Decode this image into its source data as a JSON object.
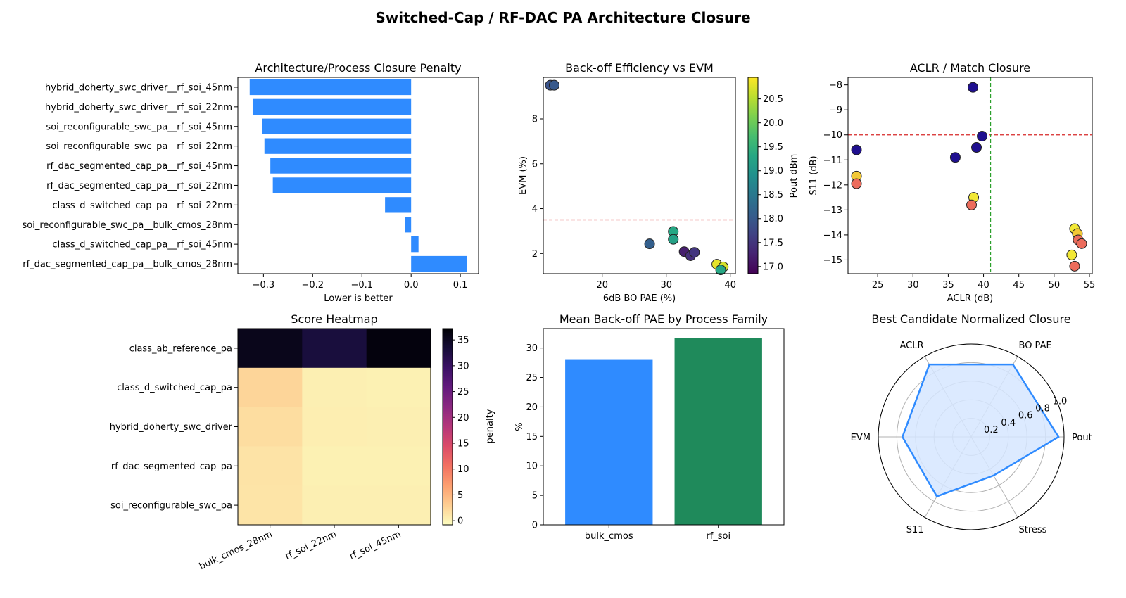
{
  "suptitle": "Switched-Cap / RF-DAC PA Architecture Closure",
  "colors": {
    "bar_blue": "#2f8bff",
    "bar_green": "#1f8a5b",
    "ref_red": "#d62728",
    "ref_green": "#2ca02c",
    "radar_line": "#2f8bff",
    "radar_fill": "#d6e6ff"
  },
  "chart_data": [
    {
      "id": "penalty",
      "type": "bar",
      "orientation": "horizontal",
      "title": "Architecture/Process Closure Penalty",
      "xlabel": "Lower is better",
      "ylabel": "",
      "categories": [
        "hybrid_doherty_swc_driver__rf_soi_45nm",
        "hybrid_doherty_swc_driver__rf_soi_22nm",
        "soi_reconfigurable_swc_pa__rf_soi_45nm",
        "soi_reconfigurable_swc_pa__rf_soi_22nm",
        "rf_dac_segmented_cap_pa__rf_soi_45nm",
        "rf_dac_segmented_cap_pa__rf_soi_22nm",
        "class_d_switched_cap_pa__rf_soi_22nm",
        "soi_reconfigurable_swc_pa__bulk_cmos_28nm",
        "class_d_switched_cap_pa__rf_soi_45nm",
        "rf_dac_segmented_cap_pa__bulk_cmos_28nm"
      ],
      "values": [
        -0.328,
        -0.322,
        -0.303,
        -0.298,
        -0.286,
        -0.281,
        -0.053,
        -0.013,
        0.015,
        0.114
      ],
      "xlim": [
        -0.352,
        0.137
      ],
      "xticks": [
        "−0.3",
        "−0.2",
        "−0.1",
        "0.0",
        "0.1"
      ],
      "xtick_values": [
        -0.3,
        -0.2,
        -0.1,
        0.0,
        0.1
      ]
    },
    {
      "id": "bo_vs_evm",
      "type": "scatter",
      "title": "Back-off Efficiency vs EVM",
      "xlabel": "6dB BO PAE (%)",
      "ylabel": "EVM (%)",
      "xlim": [
        10.8,
        40.8
      ],
      "ylim": [
        1.1,
        9.85
      ],
      "xticks": [
        "20",
        "30",
        "40"
      ],
      "xtick_values": [
        20,
        30,
        40
      ],
      "yticks": [
        "2",
        "4",
        "6",
        "8"
      ],
      "ytick_values": [
        2,
        4,
        6,
        8
      ],
      "threshold_y": 3.5,
      "colorbar": {
        "label": "Pout dBm",
        "range": [
          16.85,
          20.95
        ],
        "ticks": [
          "17.0",
          "17.5",
          "18.0",
          "18.5",
          "19.0",
          "19.5",
          "20.0",
          "20.5"
        ],
        "tick_values": [
          17.0,
          17.5,
          18.0,
          18.5,
          19.0,
          19.5,
          20.0,
          20.5
        ]
      },
      "points": [
        {
          "x": 11.9,
          "y": 9.5,
          "pout": 17.9
        },
        {
          "x": 12.5,
          "y": 9.5,
          "pout": 18.0
        },
        {
          "x": 27.4,
          "y": 2.43,
          "pout": 18.1
        },
        {
          "x": 31.1,
          "y": 2.98,
          "pout": 19.3
        },
        {
          "x": 31.1,
          "y": 2.63,
          "pout": 19.2
        },
        {
          "x": 32.8,
          "y": 2.08,
          "pout": 17.2
        },
        {
          "x": 33.8,
          "y": 1.9,
          "pout": 17.4
        },
        {
          "x": 34.4,
          "y": 2.05,
          "pout": 17.5
        },
        {
          "x": 37.9,
          "y": 1.52,
          "pout": 20.8
        },
        {
          "x": 38.9,
          "y": 1.4,
          "pout": 20.7
        },
        {
          "x": 38.5,
          "y": 1.27,
          "pout": 19.3
        }
      ]
    },
    {
      "id": "aclr_match",
      "type": "scatter",
      "title": "ACLR / Match Closure",
      "xlabel": "ACLR (dB)",
      "ylabel": "S11 (dB)",
      "xlim": [
        20.8,
        55.4
      ],
      "ylim": [
        -15.55,
        -7.7
      ],
      "xticks": [
        "25",
        "30",
        "35",
        "40",
        "45",
        "50",
        "55"
      ],
      "xtick_values": [
        25,
        30,
        35,
        40,
        45,
        50,
        55
      ],
      "yticks": [
        "−8",
        "−9",
        "−10",
        "−11",
        "−12",
        "−13",
        "−14",
        "−15"
      ],
      "ytick_values": [
        -8,
        -9,
        -10,
        -11,
        -12,
        -13,
        -14,
        -15
      ],
      "threshold_x": 41,
      "threshold_y": -10,
      "points": [
        {
          "x": 22.0,
          "y": -10.6,
          "color": "#1f0f8f"
        },
        {
          "x": 22.0,
          "y": -11.65,
          "color": "#f2c836"
        },
        {
          "x": 22.0,
          "y": -11.95,
          "color": "#ec6c5c"
        },
        {
          "x": 36.0,
          "y": -10.9,
          "color": "#1f0f8f"
        },
        {
          "x": 38.5,
          "y": -8.1,
          "color": "#1f0f8f"
        },
        {
          "x": 39.0,
          "y": -10.5,
          "color": "#1f0f8f"
        },
        {
          "x": 39.8,
          "y": -10.05,
          "color": "#1f0f8f"
        },
        {
          "x": 38.6,
          "y": -12.5,
          "color": "#f2e836"
        },
        {
          "x": 38.3,
          "y": -12.8,
          "color": "#ec6c5c"
        },
        {
          "x": 52.9,
          "y": -13.75,
          "color": "#f2e836"
        },
        {
          "x": 53.3,
          "y": -13.95,
          "color": "#f2c836"
        },
        {
          "x": 53.4,
          "y": -14.2,
          "color": "#ec6c5c"
        },
        {
          "x": 53.9,
          "y": -14.35,
          "color": "#ec6c5c"
        },
        {
          "x": 52.5,
          "y": -14.8,
          "color": "#f2e836"
        },
        {
          "x": 52.9,
          "y": -15.25,
          "color": "#ec6c5c"
        }
      ]
    },
    {
      "id": "heatmap",
      "type": "heatmap",
      "title": "Score Heatmap",
      "rows": [
        "class_ab_reference_pa",
        "class_d_switched_cap_pa",
        "hybrid_doherty_swc_driver",
        "rf_dac_segmented_cap_pa",
        "soi_reconfigurable_swc_pa"
      ],
      "columns": [
        "bulk_cmos_28nm",
        "rf_soi_22nm",
        "rf_soi_45nm"
      ],
      "values": [
        [
          35.5,
          33.0,
          36.5
        ],
        [
          2.4,
          0.3,
          0.2
        ],
        [
          1.8,
          0.4,
          0.3
        ],
        [
          1.3,
          0.2,
          0.2
        ],
        [
          1.2,
          0.3,
          0.3
        ]
      ],
      "colorbar": {
        "label": "penalty",
        "range": [
          -0.8,
          37.2
        ],
        "ticks": [
          "0",
          "5",
          "10",
          "15",
          "20",
          "25",
          "30",
          "35"
        ],
        "tick_values": [
          0,
          5,
          10,
          15,
          20,
          25,
          30,
          35
        ]
      }
    },
    {
      "id": "mean_pae",
      "type": "bar",
      "title": "Mean Back-off PAE by Process Family",
      "xlabel": "",
      "ylabel": "%",
      "categories": [
        "bulk_cmos",
        "rf_soi"
      ],
      "values": [
        28.1,
        31.7
      ],
      "bar_colors": [
        "#2f8bff",
        "#1f8a5b"
      ],
      "ylim": [
        0,
        33.3
      ],
      "yticks": [
        "0",
        "5",
        "10",
        "15",
        "20",
        "25",
        "30"
      ],
      "ytick_values": [
        0,
        5,
        10,
        15,
        20,
        25,
        30
      ]
    },
    {
      "id": "radar",
      "type": "radar",
      "title": "Best Candidate Normalized Closure",
      "axes": [
        "Pout",
        "BO PAE",
        "ACLR",
        "EVM",
        "S11",
        "Stress"
      ],
      "values": [
        0.94,
        0.9,
        0.9,
        0.74,
        0.74,
        0.48
      ],
      "rlim": [
        0,
        1.0
      ],
      "rticks": [
        "0.2",
        "0.4",
        "0.6",
        "0.8",
        "1.0"
      ],
      "rtick_values": [
        0.2,
        0.4,
        0.6,
        0.8,
        1.0
      ]
    }
  ]
}
